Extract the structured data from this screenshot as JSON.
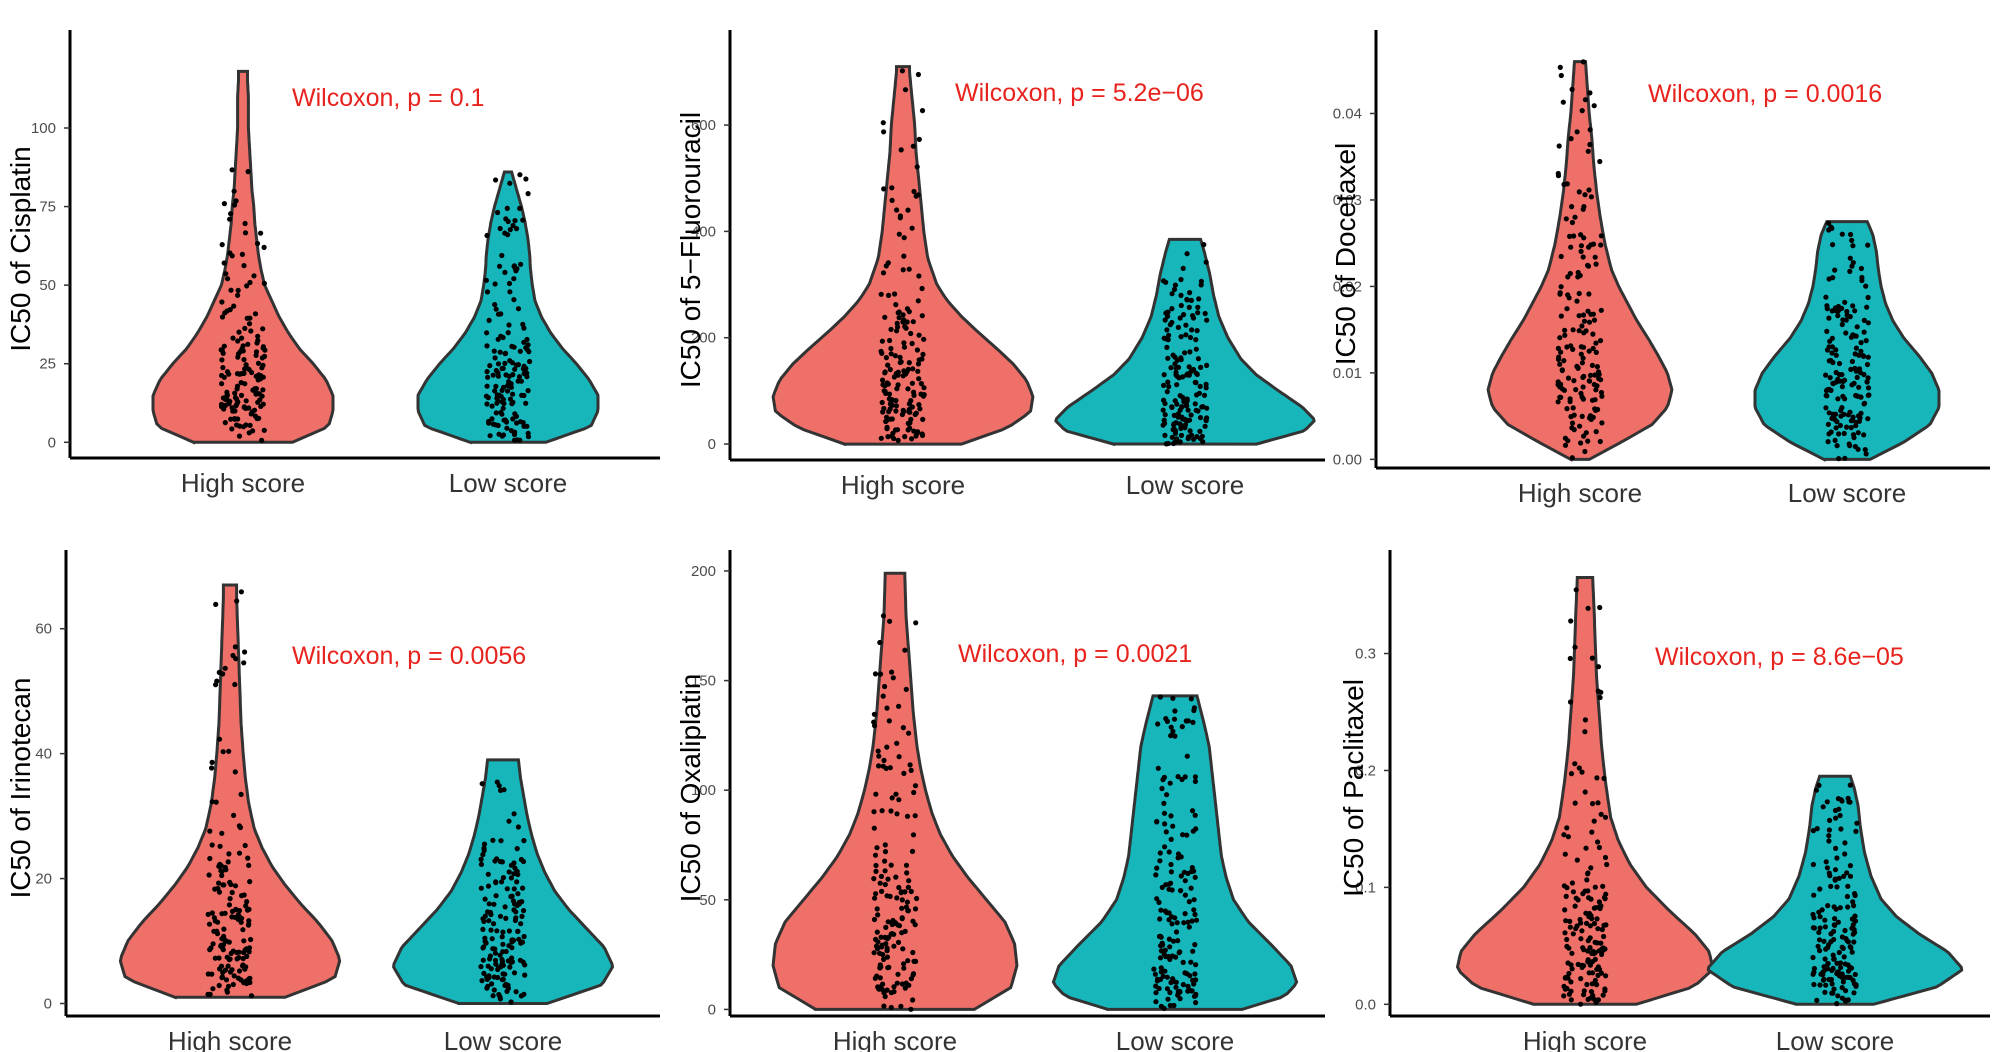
{
  "colors": {
    "high": "#EF6F69",
    "low": "#16B6BB",
    "annotation": "#E8231E",
    "point": "#000000"
  },
  "chart_data": [
    {
      "type": "violin",
      "ylabel": "IC50 of Cisplatin",
      "categories": [
        "High score",
        "Low score"
      ],
      "annotation": "Wilcoxon, p = 0.1",
      "yticks": [
        0,
        25,
        50,
        75,
        100
      ],
      "ytick_labels": [
        "0",
        "25",
        "50",
        "75",
        "100"
      ],
      "ylim": [
        -5,
        128
      ],
      "series": [
        {
          "name": "High score",
          "min": 0,
          "max": 118,
          "mode": 15,
          "points": 160,
          "density": [
            [
              0,
              0.55
            ],
            [
              5,
              0.95
            ],
            [
              10,
              1.0
            ],
            [
              15,
              1.0
            ],
            [
              20,
              0.92
            ],
            [
              25,
              0.78
            ],
            [
              30,
              0.62
            ],
            [
              35,
              0.5
            ],
            [
              40,
              0.4
            ],
            [
              45,
              0.32
            ],
            [
              50,
              0.24
            ],
            [
              55,
              0.2
            ],
            [
              60,
              0.17
            ],
            [
              65,
              0.15
            ],
            [
              70,
              0.13
            ],
            [
              75,
              0.12
            ],
            [
              80,
              0.1
            ],
            [
              85,
              0.09
            ],
            [
              90,
              0.08
            ],
            [
              95,
              0.07
            ],
            [
              100,
              0.06
            ],
            [
              105,
              0.06
            ],
            [
              110,
              0.06
            ],
            [
              115,
              0.05
            ],
            [
              118,
              0.05
            ]
          ]
        },
        {
          "name": "Low score",
          "min": 0,
          "max": 86,
          "mode": 15,
          "points": 160,
          "density": [
            [
              0,
              0.42
            ],
            [
              5,
              0.92
            ],
            [
              10,
              1.0
            ],
            [
              15,
              1.0
            ],
            [
              20,
              0.9
            ],
            [
              25,
              0.76
            ],
            [
              30,
              0.6
            ],
            [
              35,
              0.47
            ],
            [
              40,
              0.37
            ],
            [
              45,
              0.3
            ],
            [
              50,
              0.27
            ],
            [
              55,
              0.25
            ],
            [
              60,
              0.24
            ],
            [
              65,
              0.22
            ],
            [
              70,
              0.19
            ],
            [
              75,
              0.15
            ],
            [
              80,
              0.1
            ],
            [
              84,
              0.06
            ],
            [
              86,
              0.04
            ]
          ]
        }
      ]
    },
    {
      "type": "violin",
      "ylabel": "IC50 of 5−Fluorouracil",
      "categories": [
        "High score",
        "Low score"
      ],
      "annotation": "Wilcoxon, p = 5.2e−06",
      "yticks": [
        0,
        200,
        400,
        600
      ],
      "ytick_labels": [
        "0",
        "200",
        "400",
        "600"
      ],
      "ylim": [
        -30,
        760
      ],
      "series": [
        {
          "name": "High score",
          "min": 0,
          "max": 710,
          "mode": 90,
          "points": 170,
          "density": [
            [
              0,
              0.45
            ],
            [
              30,
              0.8
            ],
            [
              60,
              0.98
            ],
            [
              90,
              1.0
            ],
            [
              120,
              0.95
            ],
            [
              150,
              0.85
            ],
            [
              180,
              0.72
            ],
            [
              210,
              0.58
            ],
            [
              240,
              0.45
            ],
            [
              270,
              0.34
            ],
            [
              300,
              0.26
            ],
            [
              350,
              0.19
            ],
            [
              400,
              0.16
            ],
            [
              450,
              0.14
            ],
            [
              500,
              0.12
            ],
            [
              550,
              0.1
            ],
            [
              600,
              0.09
            ],
            [
              650,
              0.07
            ],
            [
              700,
              0.05
            ],
            [
              710,
              0.05
            ]
          ]
        },
        {
          "name": "Low score",
          "min": 0,
          "max": 385,
          "mode": 45,
          "points": 170,
          "density": [
            [
              0,
              0.55
            ],
            [
              25,
              0.92
            ],
            [
              45,
              1.0
            ],
            [
              70,
              0.9
            ],
            [
              100,
              0.72
            ],
            [
              130,
              0.55
            ],
            [
              160,
              0.43
            ],
            [
              200,
              0.33
            ],
            [
              240,
              0.26
            ],
            [
              280,
              0.22
            ],
            [
              320,
              0.19
            ],
            [
              360,
              0.15
            ],
            [
              385,
              0.12
            ]
          ]
        }
      ]
    },
    {
      "type": "violin",
      "ylabel": "IC50 of Docetaxel",
      "categories": [
        "High score",
        "Low score"
      ],
      "annotation": "Wilcoxon, p = 0.0016",
      "yticks": [
        0.0,
        0.01,
        0.02,
        0.03,
        0.04
      ],
      "ytick_labels": [
        "0.00",
        "0.01",
        "0.02",
        "0.03",
        "0.04"
      ],
      "ylim": [
        -0.001,
        0.0485
      ],
      "series": [
        {
          "name": "High score",
          "min": 0,
          "max": 0.046,
          "mode": 0.008,
          "points": 170,
          "density": [
            [
              0,
              0.1
            ],
            [
              0.002,
              0.45
            ],
            [
              0.004,
              0.78
            ],
            [
              0.006,
              0.95
            ],
            [
              0.008,
              1.0
            ],
            [
              0.01,
              0.95
            ],
            [
              0.012,
              0.85
            ],
            [
              0.014,
              0.74
            ],
            [
              0.016,
              0.62
            ],
            [
              0.018,
              0.52
            ],
            [
              0.02,
              0.42
            ],
            [
              0.022,
              0.34
            ],
            [
              0.025,
              0.27
            ],
            [
              0.028,
              0.22
            ],
            [
              0.031,
              0.18
            ],
            [
              0.034,
              0.15
            ],
            [
              0.037,
              0.13
            ],
            [
              0.04,
              0.1
            ],
            [
              0.043,
              0.08
            ],
            [
              0.046,
              0.06
            ]
          ]
        },
        {
          "name": "Low score",
          "min": 0,
          "max": 0.0275,
          "mode": 0.009,
          "points": 170,
          "density": [
            [
              0,
              0.25
            ],
            [
              0.002,
              0.62
            ],
            [
              0.004,
              0.9
            ],
            [
              0.006,
              1.0
            ],
            [
              0.008,
              1.0
            ],
            [
              0.01,
              0.92
            ],
            [
              0.012,
              0.78
            ],
            [
              0.014,
              0.62
            ],
            [
              0.016,
              0.5
            ],
            [
              0.018,
              0.42
            ],
            [
              0.02,
              0.37
            ],
            [
              0.022,
              0.34
            ],
            [
              0.024,
              0.32
            ],
            [
              0.026,
              0.28
            ],
            [
              0.0275,
              0.22
            ]
          ]
        }
      ]
    },
    {
      "type": "violin",
      "ylabel": "IC50 of Irinotecan",
      "categories": [
        "High score",
        "Low score"
      ],
      "annotation": "Wilcoxon, p = 0.0056",
      "yticks": [
        0,
        20,
        40,
        60
      ],
      "ytick_labels": [
        "0",
        "20",
        "40",
        "60"
      ],
      "ylim": [
        -2,
        71
      ],
      "series": [
        {
          "name": "High score",
          "min": 1,
          "max": 67,
          "mode": 8,
          "points": 160,
          "density": [
            [
              1,
              0.5
            ],
            [
              4,
              0.95
            ],
            [
              7,
              1.0
            ],
            [
              10,
              0.93
            ],
            [
              13,
              0.8
            ],
            [
              16,
              0.64
            ],
            [
              19,
              0.5
            ],
            [
              22,
              0.38
            ],
            [
              25,
              0.29
            ],
            [
              28,
              0.22
            ],
            [
              32,
              0.17
            ],
            [
              36,
              0.14
            ],
            [
              40,
              0.12
            ],
            [
              45,
              0.1
            ],
            [
              50,
              0.09
            ],
            [
              55,
              0.08
            ],
            [
              60,
              0.07
            ],
            [
              65,
              0.06
            ],
            [
              67,
              0.06
            ]
          ]
        },
        {
          "name": "Low score",
          "min": 0,
          "max": 39,
          "mode": 6,
          "points": 160,
          "density": [
            [
              0,
              0.4
            ],
            [
              3,
              0.9
            ],
            [
              6,
              1.0
            ],
            [
              9,
              0.92
            ],
            [
              12,
              0.76
            ],
            [
              15,
              0.6
            ],
            [
              18,
              0.47
            ],
            [
              21,
              0.38
            ],
            [
              24,
              0.31
            ],
            [
              27,
              0.26
            ],
            [
              30,
              0.22
            ],
            [
              33,
              0.19
            ],
            [
              36,
              0.16
            ],
            [
              39,
              0.14
            ]
          ]
        }
      ]
    },
    {
      "type": "violin",
      "ylabel": "IC50 of Oxaliplatin",
      "categories": [
        "High score",
        "Low score"
      ],
      "annotation": "Wilcoxon, p = 0.0021",
      "yticks": [
        0,
        50,
        100,
        150,
        200
      ],
      "ytick_labels": [
        "0",
        "50",
        "100",
        "150",
        "200"
      ],
      "ylim": [
        -3,
        205
      ],
      "series": [
        {
          "name": "High score",
          "min": 0,
          "max": 199,
          "mode": 20,
          "points": 170,
          "density": [
            [
              0,
              0.65
            ],
            [
              10,
              0.95
            ],
            [
              20,
              1.0
            ],
            [
              30,
              0.98
            ],
            [
              40,
              0.9
            ],
            [
              50,
              0.75
            ],
            [
              60,
              0.6
            ],
            [
              70,
              0.47
            ],
            [
              80,
              0.37
            ],
            [
              90,
              0.3
            ],
            [
              100,
              0.25
            ],
            [
              110,
              0.21
            ],
            [
              120,
              0.18
            ],
            [
              135,
              0.15
            ],
            [
              150,
              0.13
            ],
            [
              165,
              0.11
            ],
            [
              180,
              0.09
            ],
            [
              199,
              0.08
            ]
          ]
        },
        {
          "name": "Low score",
          "min": 0,
          "max": 143,
          "mode": 12,
          "points": 170,
          "density": [
            [
              0,
              0.55
            ],
            [
              6,
              0.9
            ],
            [
              12,
              1.0
            ],
            [
              20,
              0.95
            ],
            [
              30,
              0.78
            ],
            [
              40,
              0.6
            ],
            [
              50,
              0.48
            ],
            [
              60,
              0.42
            ],
            [
              70,
              0.38
            ],
            [
              80,
              0.36
            ],
            [
              90,
              0.34
            ],
            [
              100,
              0.32
            ],
            [
              110,
              0.3
            ],
            [
              120,
              0.28
            ],
            [
              130,
              0.24
            ],
            [
              143,
              0.18
            ]
          ]
        }
      ]
    },
    {
      "type": "violin",
      "ylabel": "IC50 of Paclitaxel",
      "categories": [
        "High score",
        "Low score"
      ],
      "annotation": "Wilcoxon, p = 8.6e−05",
      "yticks": [
        0.0,
        0.1,
        0.2,
        0.3
      ],
      "ytick_labels": [
        "0.0",
        "0.1",
        "0.2",
        "0.3"
      ],
      "ylim": [
        -0.01,
        0.38
      ],
      "series": [
        {
          "name": "High score",
          "min": 0,
          "max": 0.365,
          "mode": 0.04,
          "points": 170,
          "density": [
            [
              0,
              0.4
            ],
            [
              0.015,
              0.85
            ],
            [
              0.03,
              1.0
            ],
            [
              0.045,
              0.97
            ],
            [
              0.06,
              0.86
            ],
            [
              0.08,
              0.66
            ],
            [
              0.1,
              0.48
            ],
            [
              0.12,
              0.35
            ],
            [
              0.14,
              0.26
            ],
            [
              0.16,
              0.2
            ],
            [
              0.19,
              0.16
            ],
            [
              0.22,
              0.13
            ],
            [
              0.25,
              0.11
            ],
            [
              0.28,
              0.09
            ],
            [
              0.31,
              0.08
            ],
            [
              0.34,
              0.07
            ],
            [
              0.365,
              0.06
            ]
          ]
        },
        {
          "name": "Low score",
          "min": 0,
          "max": 0.195,
          "mode": 0.035,
          "points": 170,
          "density": [
            [
              0,
              0.3
            ],
            [
              0.015,
              0.8
            ],
            [
              0.03,
              1.0
            ],
            [
              0.045,
              0.88
            ],
            [
              0.06,
              0.66
            ],
            [
              0.075,
              0.48
            ],
            [
              0.09,
              0.36
            ],
            [
              0.11,
              0.28
            ],
            [
              0.13,
              0.23
            ],
            [
              0.15,
              0.2
            ],
            [
              0.17,
              0.18
            ],
            [
              0.185,
              0.15
            ],
            [
              0.195,
              0.12
            ]
          ]
        }
      ]
    }
  ]
}
